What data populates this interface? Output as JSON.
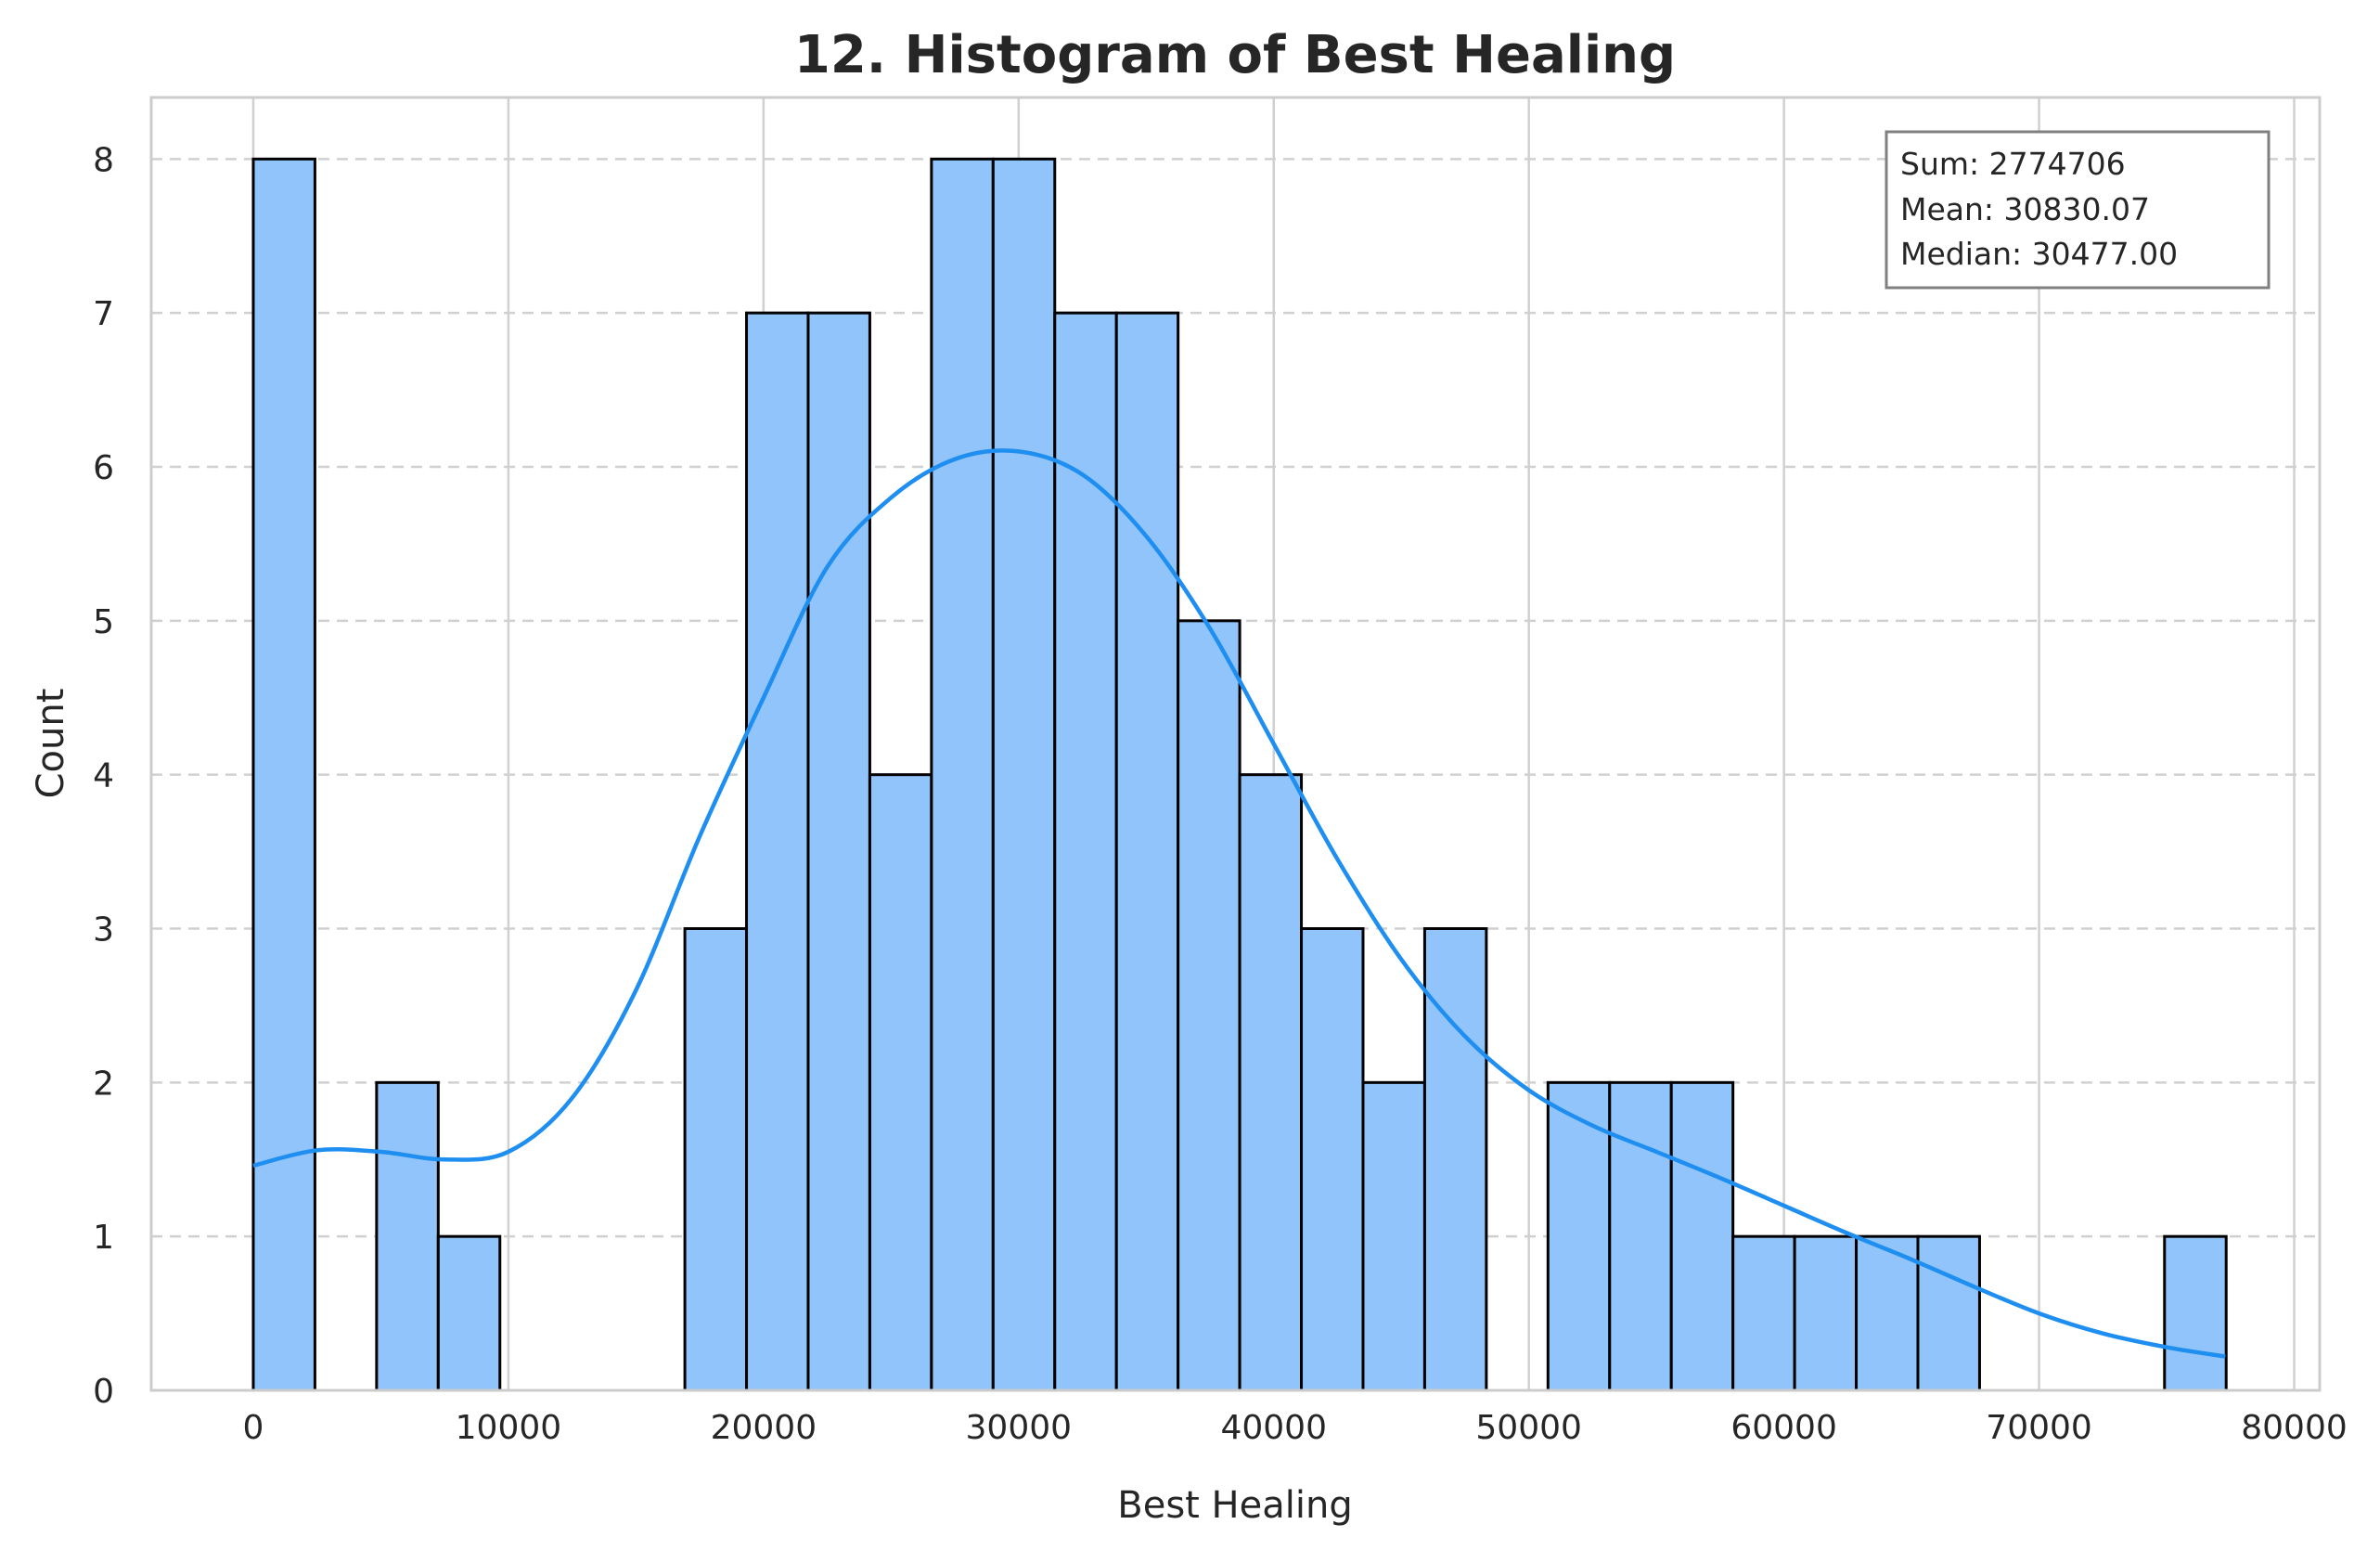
{
  "chart_data": {
    "type": "bar",
    "title": "12. Histogram of Best Healing",
    "xlabel": "Best Healing",
    "ylabel": "Count",
    "xlim": [
      -4000,
      81000
    ],
    "ylim": [
      0,
      8.4
    ],
    "xticks": [
      0,
      10000,
      20000,
      30000,
      40000,
      50000,
      60000,
      70000,
      80000
    ],
    "yticks": [
      0,
      1,
      2,
      3,
      4,
      5,
      6,
      7,
      8
    ],
    "bin_start": 0,
    "bin_width": 2416.7,
    "bin_counts": [
      8,
      0,
      2,
      1,
      0,
      0,
      0,
      3,
      7,
      7,
      4,
      8,
      8,
      7,
      7,
      5,
      4,
      3,
      2,
      3,
      0,
      2,
      2,
      2,
      1,
      1,
      1,
      1,
      0,
      0,
      0,
      1
    ],
    "kde": {
      "x": [
        0,
        2500,
        5000,
        7500,
        10000,
        12500,
        15000,
        17500,
        20000,
        22500,
        25000,
        27500,
        30000,
        32500,
        35000,
        37500,
        40000,
        42500,
        45000,
        47500,
        50000,
        52500,
        55000,
        57500,
        60000,
        62500,
        65000,
        67500,
        70000,
        72500,
        75000,
        77300
      ],
      "y": [
        1.46,
        1.56,
        1.55,
        1.5,
        1.55,
        1.9,
        2.6,
        3.6,
        4.5,
        5.35,
        5.8,
        6.05,
        6.1,
        5.95,
        5.55,
        4.95,
        4.2,
        3.45,
        2.8,
        2.3,
        1.95,
        1.72,
        1.55,
        1.38,
        1.2,
        1.02,
        0.85,
        0.67,
        0.5,
        0.37,
        0.28,
        0.22
      ]
    },
    "grid": true,
    "stats": [
      "Sum: 2774706",
      "Mean: 30830.07",
      "Median: 30477.00"
    ],
    "stats_placement": "top-right",
    "colors": {
      "bar_fill": "#90c4fb",
      "bar_edge": "#000000",
      "kde_line": "#1e8ef0",
      "grid": "#d0d0d0",
      "spine": "#cccccc"
    }
  }
}
